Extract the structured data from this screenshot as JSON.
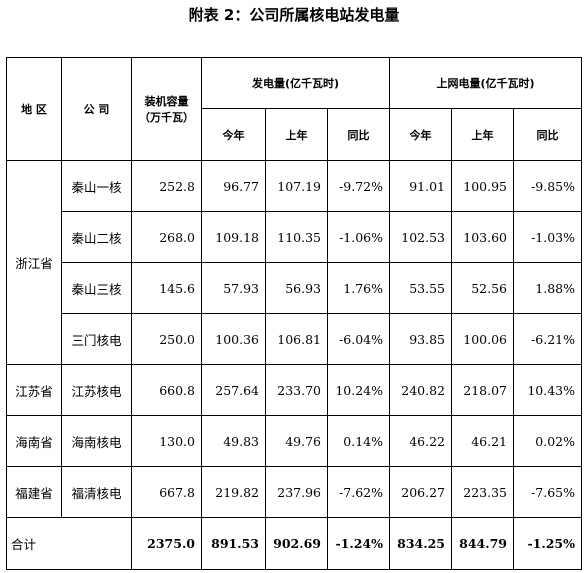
{
  "title": "附表 2：公司所属核电站发电量",
  "headers": {
    "region": "地 区",
    "company": "公 司",
    "capacity": "装机容量\n（万千瓦）",
    "generation": "发电量(亿千瓦时)",
    "grid": "上网电量(亿千瓦时)",
    "this_year": "今年",
    "last_year": "上年",
    "yoy": "同比"
  },
  "regions": {
    "zhejiang": "浙江省",
    "jiangsu": "江苏省",
    "hainan": "海南省",
    "fujian": "福建省"
  },
  "rows": [
    {
      "company": "秦山一核",
      "capacity": "252.8",
      "gen_this": "96.77",
      "gen_last": "107.19",
      "gen_yoy": "-9.72%",
      "grid_this": "91.01",
      "grid_last": "100.95",
      "grid_yoy": "-9.85%"
    },
    {
      "company": "秦山二核",
      "capacity": "268.0",
      "gen_this": "109.18",
      "gen_last": "110.35",
      "gen_yoy": "-1.06%",
      "grid_this": "102.53",
      "grid_last": "103.60",
      "grid_yoy": "-1.03%"
    },
    {
      "company": "秦山三核",
      "capacity": "145.6",
      "gen_this": "57.93",
      "gen_last": "56.93",
      "gen_yoy": "1.76%",
      "grid_this": "53.55",
      "grid_last": "52.56",
      "grid_yoy": "1.88%"
    },
    {
      "company": "三门核电",
      "capacity": "250.0",
      "gen_this": "100.36",
      "gen_last": "106.81",
      "gen_yoy": "-6.04%",
      "grid_this": "93.85",
      "grid_last": "100.06",
      "grid_yoy": "-6.21%"
    },
    {
      "company": "江苏核电",
      "capacity": "660.8",
      "gen_this": "257.64",
      "gen_last": "233.70",
      "gen_yoy": "10.24%",
      "grid_this": "240.82",
      "grid_last": "218.07",
      "grid_yoy": "10.43%"
    },
    {
      "company": "海南核电",
      "capacity": "130.0",
      "gen_this": "49.83",
      "gen_last": "49.76",
      "gen_yoy": "0.14%",
      "grid_this": "46.22",
      "grid_last": "46.21",
      "grid_yoy": "0.02%"
    },
    {
      "company": "福清核电",
      "capacity": "667.8",
      "gen_this": "219.82",
      "gen_last": "237.96",
      "gen_yoy": "-7.62%",
      "grid_this": "206.27",
      "grid_last": "223.35",
      "grid_yoy": "-7.65%"
    }
  ],
  "total": {
    "label": "合计",
    "capacity": "2375.0",
    "gen_this": "891.53",
    "gen_last": "902.69",
    "gen_yoy": "-1.24%",
    "grid_this": "834.25",
    "grid_last": "844.79",
    "grid_yoy": "-1.25%"
  }
}
